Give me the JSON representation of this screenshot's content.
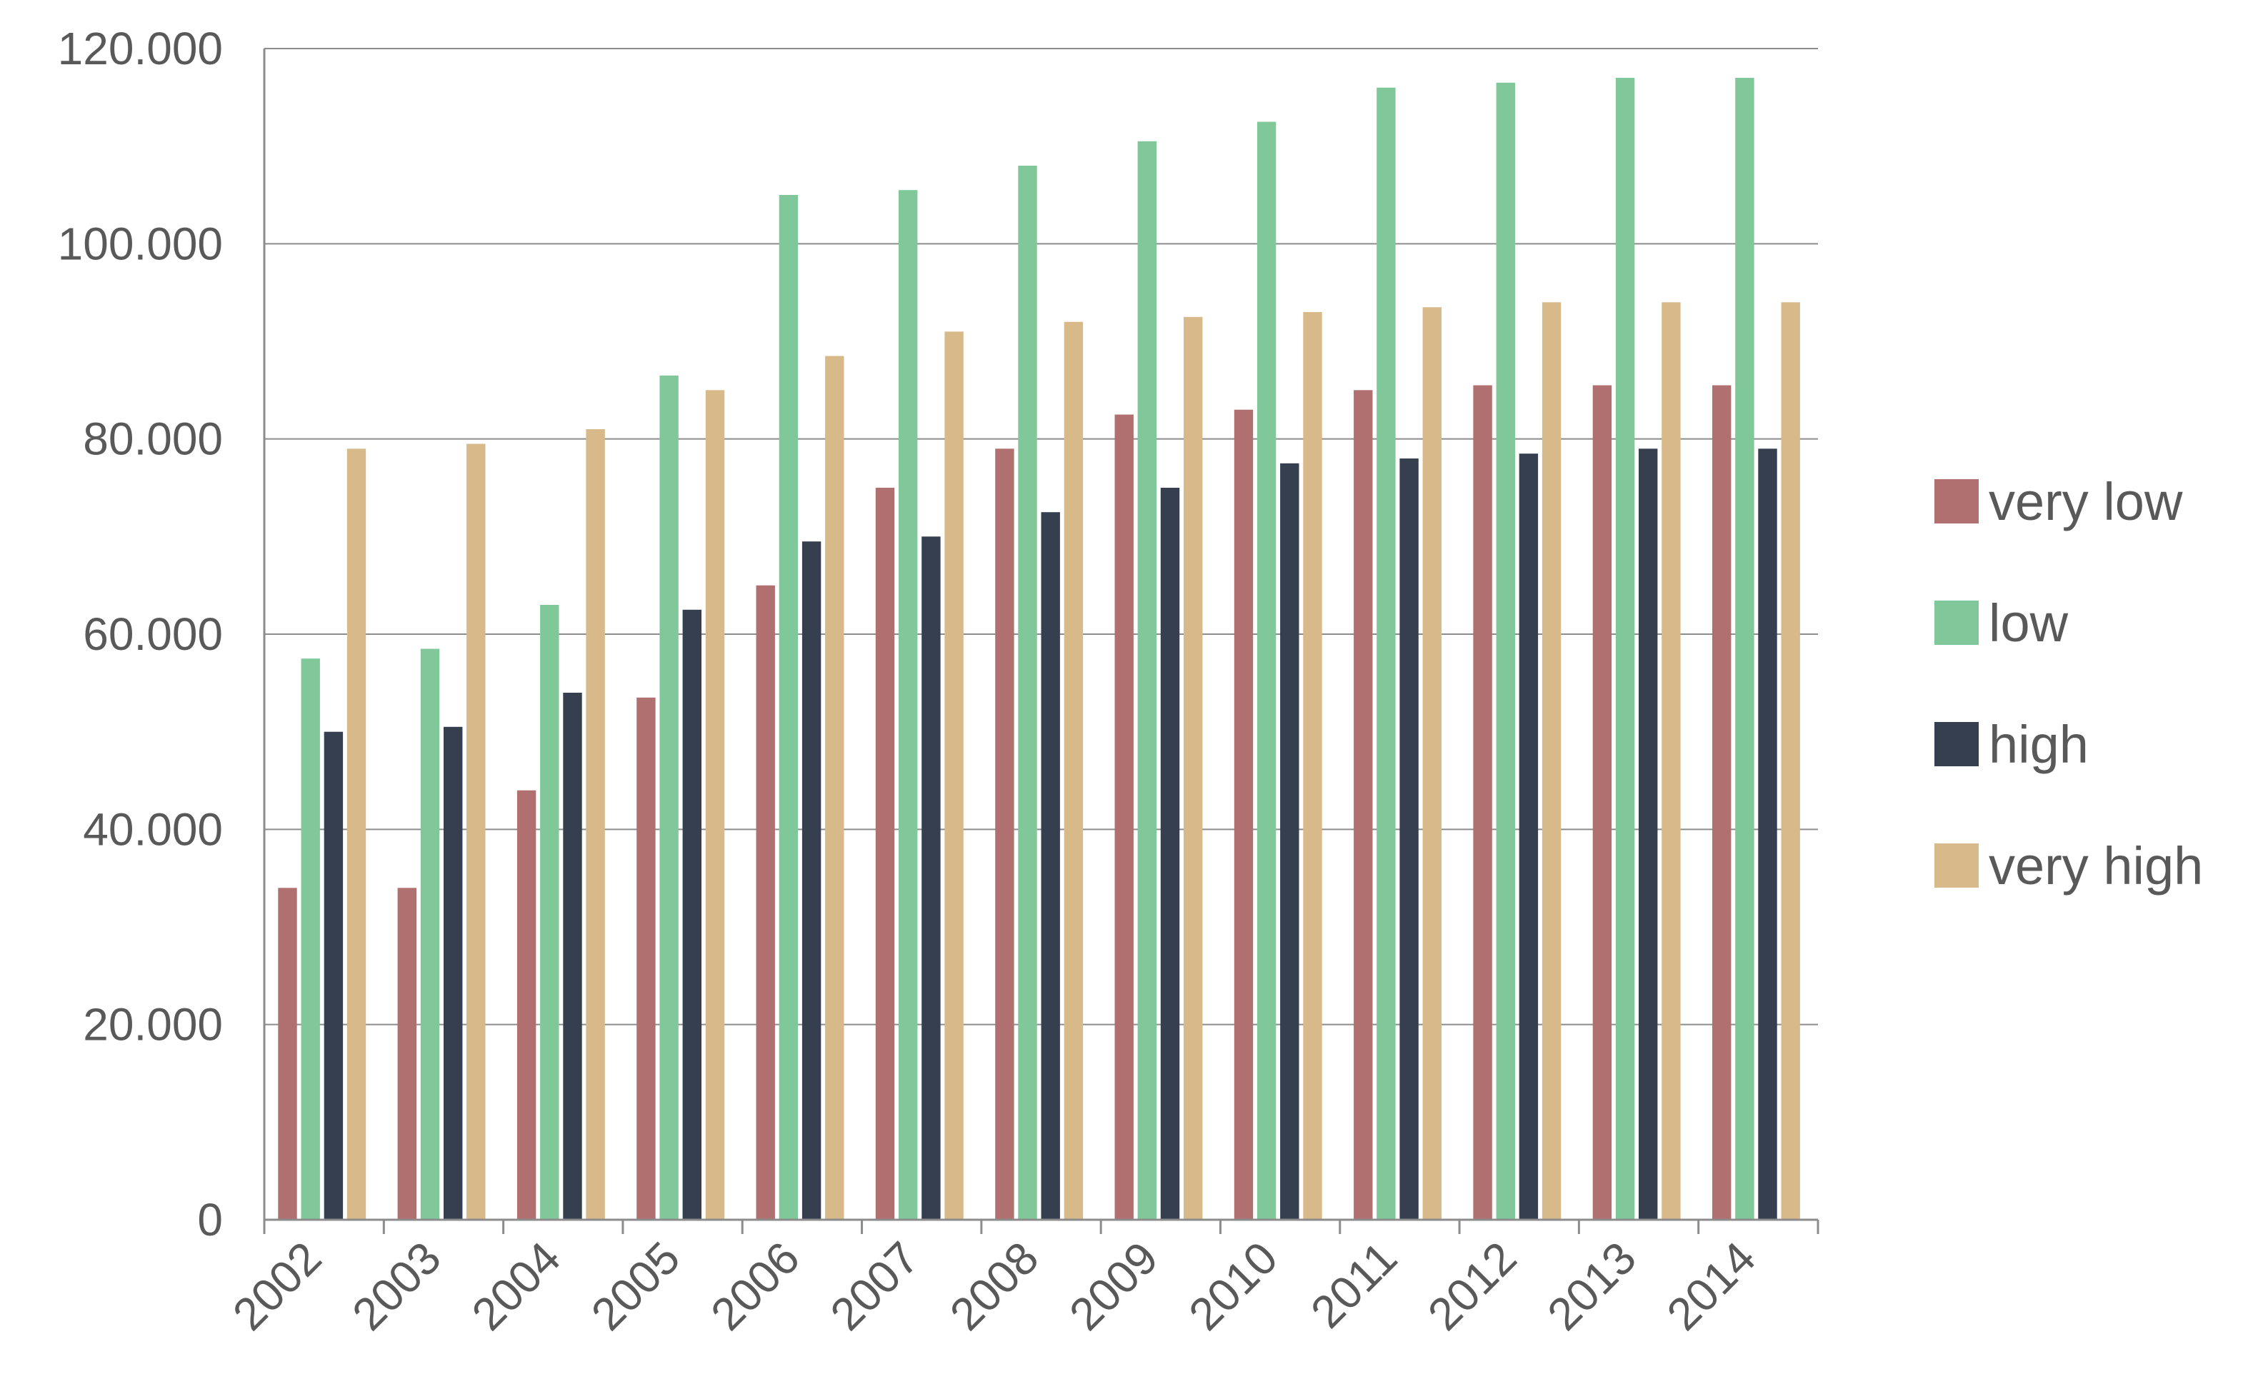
{
  "chart_data": {
    "type": "bar",
    "categories": [
      "2002",
      "2003",
      "2004",
      "2005",
      "2006",
      "2007",
      "2008",
      "2009",
      "2010",
      "2011",
      "2012",
      "2013",
      "2014"
    ],
    "y_ticks": [
      "0",
      "20.000",
      "40.000",
      "60.000",
      "80.000",
      "100.000",
      "120.000"
    ],
    "ylim": [
      0,
      120000
    ],
    "grid": true,
    "legend_position": "right",
    "series": [
      {
        "name": "very low",
        "color": "#B07070",
        "values": [
          34000,
          34000,
          44000,
          53500,
          65000,
          75000,
          79000,
          82500,
          83000,
          85000,
          85500,
          85500,
          85500
        ]
      },
      {
        "name": "low",
        "color": "#80C89A",
        "values": [
          57500,
          58500,
          63000,
          86500,
          105000,
          105500,
          108000,
          110500,
          112500,
          116000,
          116500,
          117000,
          117000
        ]
      },
      {
        "name": "high",
        "color": "#353F4F",
        "values": [
          50000,
          50500,
          54000,
          62500,
          69500,
          70000,
          72500,
          75000,
          77500,
          78000,
          78500,
          79000,
          79000
        ]
      },
      {
        "name": "very high",
        "color": "#D7B98A",
        "values": [
          79000,
          79500,
          81000,
          85000,
          88500,
          91000,
          92000,
          92500,
          93000,
          93500,
          94000,
          94000,
          94000
        ]
      }
    ]
  }
}
